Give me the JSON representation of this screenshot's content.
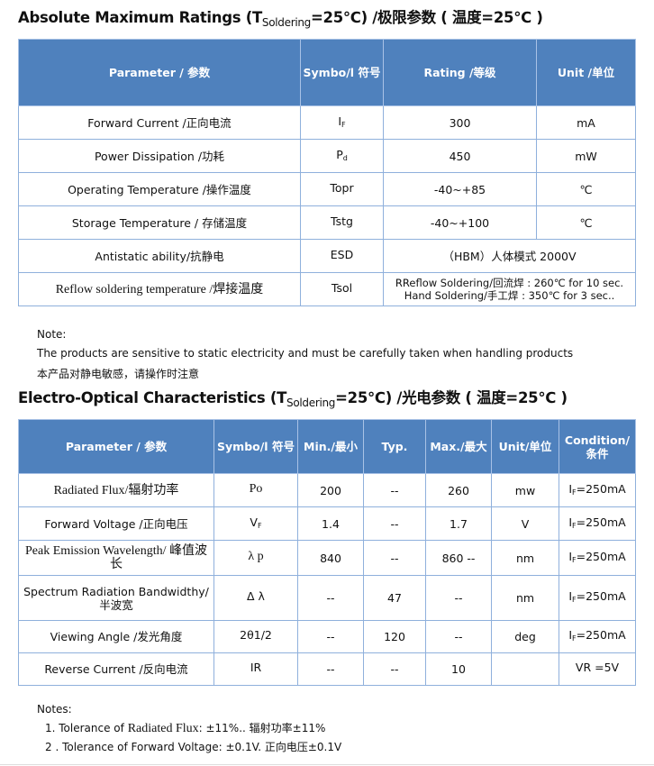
{
  "section1": {
    "title_pre": "Absolute Maximum Ratings (T",
    "title_sub": "Soldering",
    "title_post": "=25℃) /极限参数 ( 温度=25℃ )",
    "headers": [
      "Parameter / 参数",
      "Symbo/l 符号",
      "Rating /等级",
      "Unit /单位"
    ],
    "rows": [
      {
        "param": "Forward Current /正向电流",
        "sym": "I",
        "sym_sub": "F",
        "rating": "300",
        "unit": "mA"
      },
      {
        "param": "Power Dissipation  /功耗",
        "sym": "P",
        "sym_sub": "d",
        "rating": "450",
        "unit": "mW"
      },
      {
        "param": "Operating Temperature /操作温度",
        "sym": "Topr",
        "sym_sub": "",
        "rating": "-40~+85",
        "unit": "℃"
      },
      {
        "param": "Storage Temperature / 存储温度",
        "sym": "Tstg",
        "sym_sub": "",
        "rating": "-40~+100",
        "unit": "℃"
      },
      {
        "param": "Antistatic ability/抗静电",
        "sym": "ESD",
        "sym_sub": "",
        "rating": "（HBM）人体模式  2000V",
        "unit": "",
        "merged": true
      },
      {
        "param": "Reflow soldering temperature /焊接温度",
        "sym": "Tsol",
        "sym_sub": "",
        "rating": "RReflow Soldering/回流焊 : 260℃ for 10 sec.",
        "rating2": "Hand Soldering/手工焊 : 350℃  for 3 sec..",
        "unit": "",
        "merged": true,
        "serif_param": true
      }
    ]
  },
  "note": {
    "label": "Note:",
    "line1": "The products are sensitive to static electricity and must be carefully taken when handling products",
    "line2": " 本产品对静电敏感，请操作时注意"
  },
  "section2": {
    "title_pre": "Electro-Optical Characteristics (T",
    "title_sub": "Soldering",
    "title_post": "=25℃) /光电参数 ( 温度=25℃ )",
    "headers": [
      "Parameter / 参数",
      "Symbo/l 符号",
      "Min./最小",
      "Typ.",
      "Max./最大",
      "Unit/单位",
      "Condition/ 条件"
    ],
    "rows": [
      {
        "param": "Radiated Flux/辐射功率",
        "sym": "Po",
        "sym_sub": "",
        "min": "200",
        "typ": "--",
        "max": "260",
        "unit": "mw",
        "cond": "I",
        "cond_sub": "F",
        "cond_post": "=250mA",
        "serif": true
      },
      {
        "param": "Forward Voltage /正向电压",
        "sym": "V",
        "sym_sub": "F",
        "min": "1.4",
        "typ": "--",
        "max": "1.7",
        "unit": "V",
        "cond": "I",
        "cond_sub": "F",
        "cond_post": "=250mA"
      },
      {
        "param": "Peak Emission Wavelength/ 峰值波长",
        "sym": "λ p",
        "sym_sub": "",
        "min": "840",
        "typ": "--",
        "max": "860 --",
        "unit": "nm",
        "cond": "I",
        "cond_sub": "F",
        "cond_post": "=250mA",
        "serif": true
      },
      {
        "param": "Spectrum Radiation Bandwidthy/ 半波宽",
        "sym": "Δ λ",
        "sym_sub": "",
        "min": "--",
        "typ": "47",
        "max": "--",
        "unit": "nm",
        "cond": "I",
        "cond_sub": "F",
        "cond_post": "=250mA"
      },
      {
        "param": "Viewing Angle /发光角度",
        "sym": "2θ1/2",
        "sym_sub": "",
        "min": "--",
        "typ": "120",
        "max": "--",
        "unit": "deg",
        "cond": "I",
        "cond_sub": "F",
        "cond_post": "=250mA"
      },
      {
        "param": "Reverse Current /反向电流",
        "sym": "IR",
        "sym_sub": "",
        "min": "--",
        "typ": "--",
        "max": "10",
        "unit": "",
        "cond": "VR =5V",
        "cond_sub": "",
        "cond_post": ""
      }
    ]
  },
  "notes": {
    "label": "Notes:",
    "item1_pre": "1.  Tolerance of ",
    "item1_serif": "Radiated Flux",
    "item1_post": ": ±11%..  辐射功率±11%",
    "item2": "2 . Tolerance of Forward Voltage: ±0.1V.  正向电压±0.1V"
  },
  "colors": {
    "header_bg": "#4f81bd",
    "grid": "#8fb0dc"
  }
}
